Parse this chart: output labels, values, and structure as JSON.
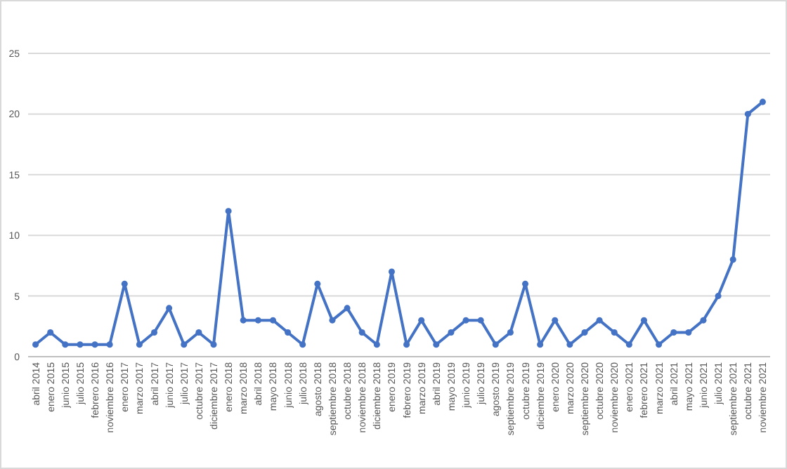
{
  "chart_data": {
    "type": "line",
    "categories": [
      "abril 2014",
      "enero 2015",
      "junio 2015",
      "julio 2015",
      "febrero 2016",
      "noviembre 2016",
      "enero 2017",
      "marzo 2017",
      "abril 2017",
      "junio 2017",
      "julio 2017",
      "octubre 2017",
      "diciembre 2017",
      "enero 2018",
      "marzo 2018",
      "abril 2018",
      "mayo 2018",
      "junio 2018",
      "julio 2018",
      "agosto 2018",
      "septiembre 2018",
      "octubre 2018",
      "noviembre 2018",
      "diciembre 2018",
      "enero 2019",
      "febrero 2019",
      "marzo 2019",
      "abril 2019",
      "mayo 2019",
      "junio 2019",
      "julio 2019",
      "agosto 2019",
      "septiembre 2019",
      "octubre 2019",
      "diciembre 2019",
      "enero 2020",
      "marzo 2020",
      "septiembre 2020",
      "octubre 2020",
      "noviembre 2020",
      "enero 2021",
      "febrero 2021",
      "marzo 2021",
      "abril 2021",
      "mayo 2021",
      "junio 2021",
      "julio 2021",
      "septiembre 2021",
      "octubre 2021",
      "noviembre 2021"
    ],
    "series": [
      {
        "color": "#4472c4",
        "values": [
          1,
          2,
          1,
          1,
          1,
          1,
          6,
          1,
          2,
          4,
          1,
          2,
          1,
          12,
          3,
          3,
          3,
          2,
          1,
          6,
          3,
          4,
          2,
          1,
          7,
          1,
          3,
          1,
          2,
          3,
          3,
          1,
          2,
          6,
          1,
          3,
          1,
          2,
          3,
          2,
          1,
          3,
          1,
          2,
          2,
          3,
          5,
          8,
          20,
          21
        ]
      }
    ],
    "ylim": [
      0,
      25
    ],
    "yticks": [
      0,
      5,
      10,
      15,
      20,
      25
    ],
    "grid": "y",
    "marker": "circle",
    "line_style": "solid"
  }
}
